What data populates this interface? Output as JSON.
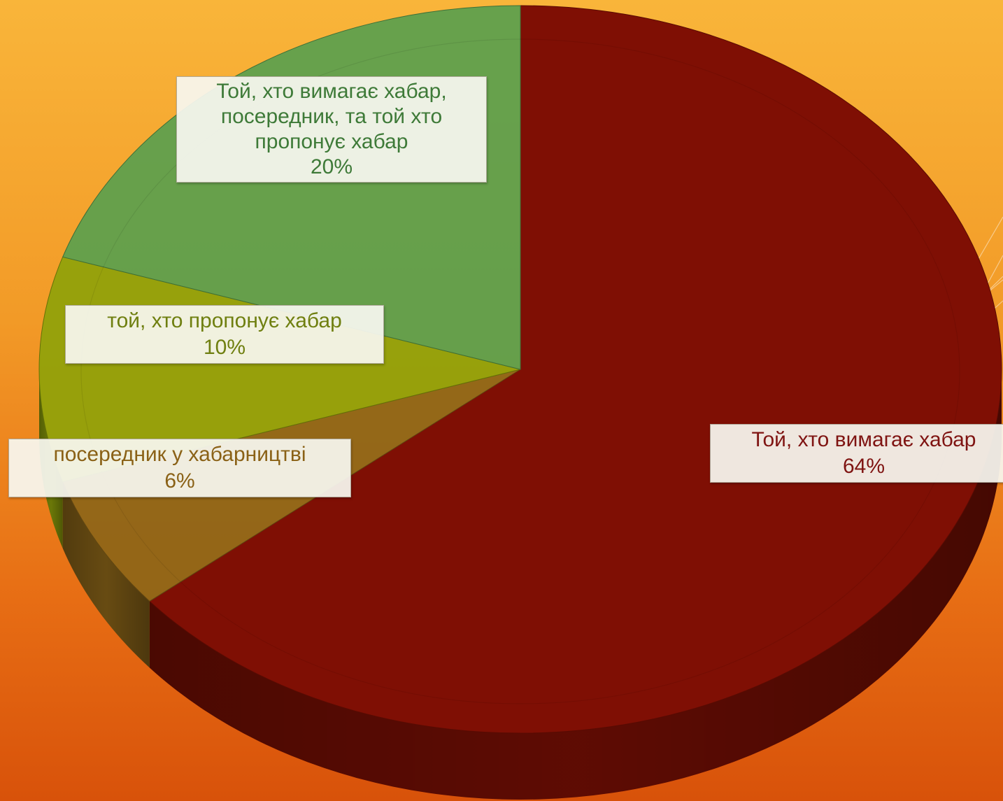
{
  "chart_data": {
    "type": "pie",
    "style": "3d",
    "slices": [
      {
        "label": "Той, хто вимагає хабар",
        "percent_label": "64%",
        "value": 64,
        "color": "#7f0f04",
        "text_color": "#7f1412"
      },
      {
        "label": "посередник у хабарництві",
        "percent_label": "6%",
        "value": 6,
        "color": "#8c6518",
        "text_color": "#8a6116"
      },
      {
        "label": "той, хто пропонує хабар",
        "percent_label": "10%",
        "value": 10,
        "color": "#8fa20a",
        "text_color": "#6f7f10"
      },
      {
        "label": "Той, хто вимагає хабар, посередник, та той хто пропонує хабар",
        "percent_label": "20%",
        "value": 20,
        "color": "#5a9f4e",
        "text_color": "#3e7a38"
      }
    ],
    "title": "",
    "legend": "none"
  }
}
